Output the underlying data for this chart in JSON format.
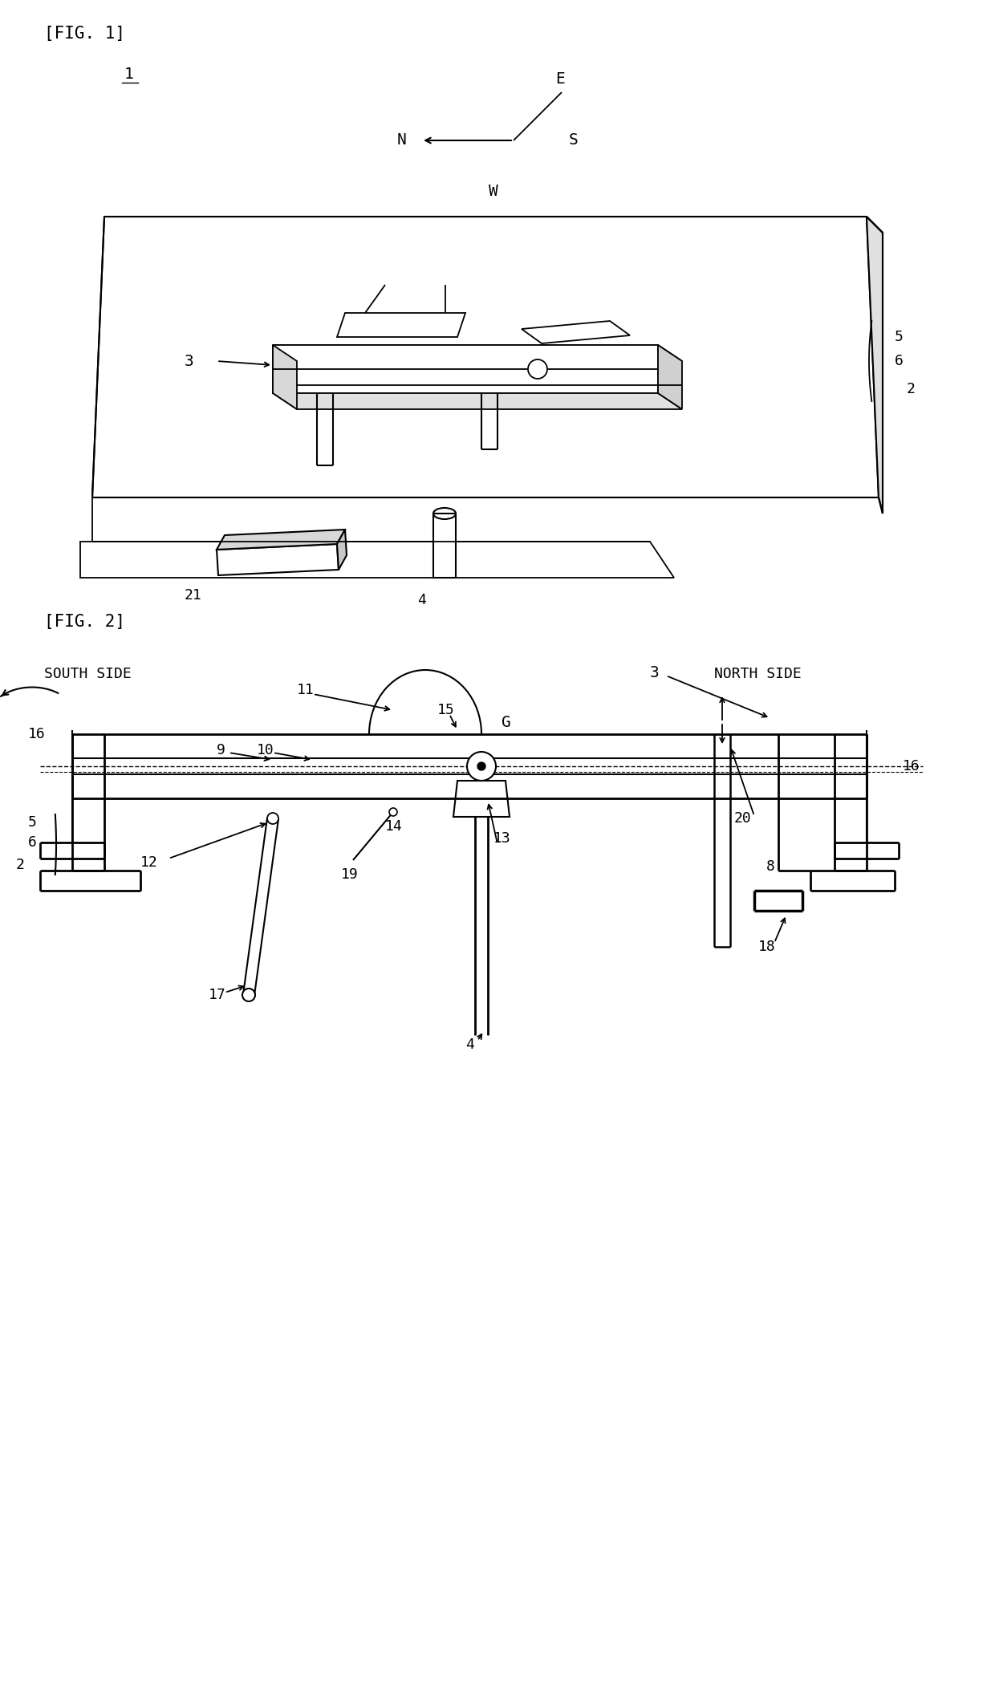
{
  "bg_color": "#ffffff",
  "line_color": "#000000",
  "fig1_label": "[FIG. 1]",
  "fig2_label": "[FIG. 2]",
  "fig1_num": "1",
  "fig2_south": "SOUTH SIDE",
  "fig2_north": "NORTH SIDE"
}
